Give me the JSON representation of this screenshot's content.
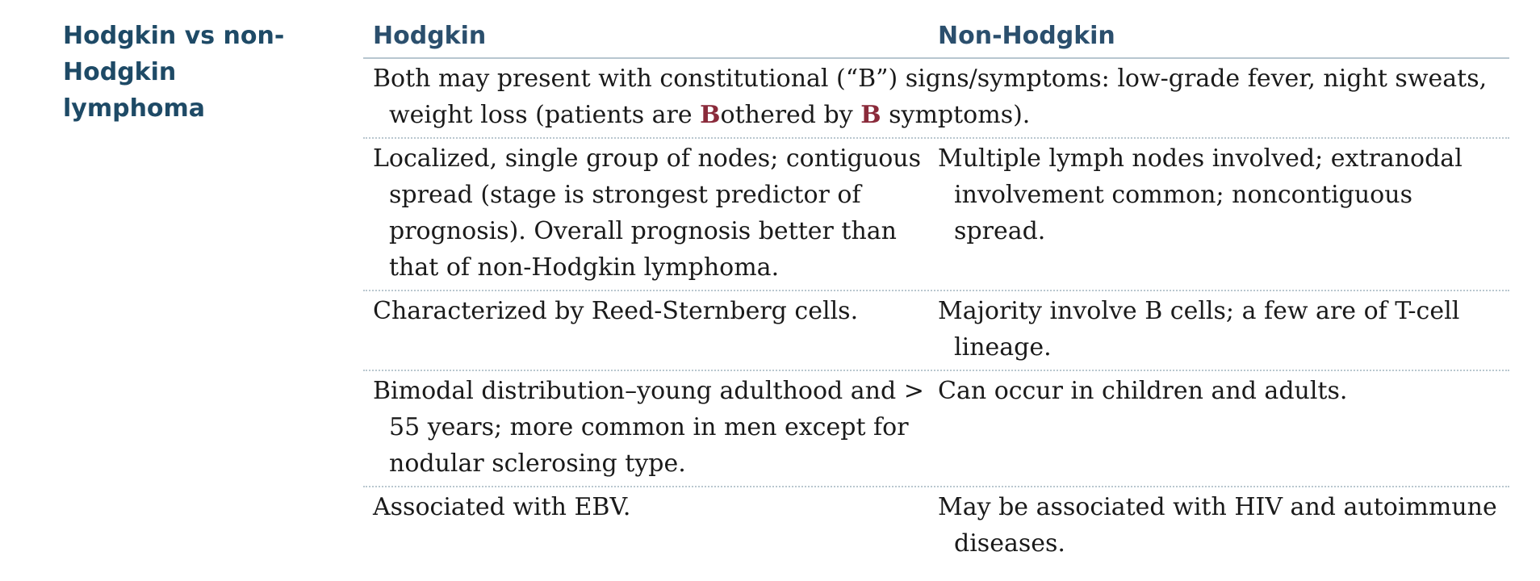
{
  "side_title": "Hodgkin vs non-Hodgkin lymphoma",
  "headers": {
    "col1": "Hodgkin",
    "col2": "Non-Hodgkin"
  },
  "both_row": {
    "part1": "Both may present with constitutional (“B”) signs/symptoms: low-grade fever, night sweats, weight loss (patients are ",
    "b1": "B",
    "part2": "othered by ",
    "b2": "B",
    "part3": " symptoms)."
  },
  "rows": [
    {
      "hodgkin": "Localized, single group of nodes; contiguous spread (stage is strongest predictor of prognosis). Overall prognosis better than that of non-Hodgkin lymphoma.",
      "non_hodgkin": "Multiple lymph nodes involved; extranodal involvement common; noncontiguous spread."
    },
    {
      "hodgkin": "Characterized by Reed-Sternberg cells.",
      "non_hodgkin": "Majority involve B cells; a few are of T-cell lineage."
    },
    {
      "hodgkin": "Bimodal distribution–young adulthood and > 55 years; more common in men except for nodular sclerosing type.",
      "non_hodgkin": "Can occur in children and adults."
    },
    {
      "hodgkin": "Associated with EBV.",
      "non_hodgkin": "May be associated with HIV and autoimmune diseases."
    }
  ],
  "colors": {
    "heading": "#1e4a66",
    "emphasis": "#8a2a3a"
  }
}
